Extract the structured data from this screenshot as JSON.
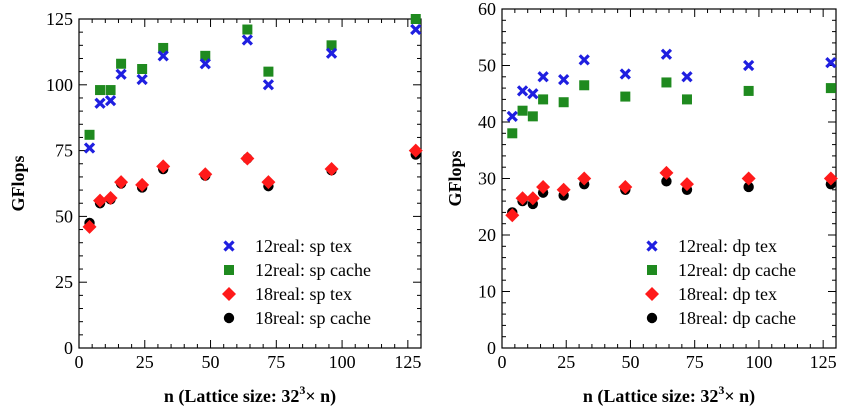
{
  "chart_data": [
    {
      "type": "scatter",
      "xlabel": "n (Lattice size: 32",
      "xlabel_sup": "3",
      "xlabel_tail": "× n)",
      "ylabel": "GFlops",
      "xlim": [
        0,
        130
      ],
      "ylim": [
        0,
        125
      ],
      "x_ticks": [
        0,
        25,
        50,
        75,
        100,
        125
      ],
      "y_ticks": [
        0,
        25,
        50,
        75,
        100,
        125
      ],
      "grid": false,
      "legend_position": "bottom-right",
      "series": [
        {
          "name": "12real: sp tex",
          "marker": "x",
          "color": "#1f1fe0",
          "x": [
            4,
            8,
            12,
            16,
            24,
            32,
            48,
            64,
            72,
            96,
            128
          ],
          "y": [
            76,
            93,
            94,
            104,
            102,
            111,
            108,
            117,
            100,
            112,
            121
          ]
        },
        {
          "name": "12real: sp cache",
          "marker": "square",
          "color": "#1f8a1f",
          "x": [
            4,
            8,
            12,
            16,
            24,
            32,
            48,
            64,
            72,
            96,
            128
          ],
          "y": [
            81,
            98,
            98,
            108,
            106,
            114,
            111,
            121,
            105,
            115,
            125
          ]
        },
        {
          "name": "18real: sp tex",
          "marker": "diamond",
          "color": "#ff1a1a",
          "x": [
            4,
            8,
            12,
            16,
            24,
            32,
            48,
            64,
            72,
            96,
            128
          ],
          "y": [
            46,
            56,
            57,
            63,
            62,
            69,
            66,
            72,
            63,
            68,
            75
          ]
        },
        {
          "name": "18real: sp cache",
          "marker": "circle",
          "color": "#000000",
          "x": [
            4,
            8,
            12,
            16,
            24,
            32,
            48,
            64,
            72,
            96,
            128
          ],
          "y": [
            47.5,
            55,
            56.5,
            62.5,
            61,
            68,
            65.5,
            72,
            61.5,
            67.5,
            73.5
          ]
        }
      ]
    },
    {
      "type": "scatter",
      "xlabel": "n (Lattice size: 32",
      "xlabel_sup": "3",
      "xlabel_tail": "× n)",
      "ylabel": "GFlops",
      "xlim": [
        0,
        130
      ],
      "ylim": [
        0,
        60
      ],
      "x_ticks": [
        0,
        25,
        50,
        75,
        100,
        125
      ],
      "y_ticks": [
        0,
        10,
        20,
        30,
        40,
        50,
        60
      ],
      "grid": false,
      "legend_position": "bottom-right",
      "series": [
        {
          "name": "12real: dp tex",
          "marker": "x",
          "color": "#1f1fe0",
          "x": [
            4,
            8,
            12,
            16,
            24,
            32,
            48,
            64,
            72,
            96,
            128
          ],
          "y": [
            41,
            45.5,
            45,
            48,
            47.5,
            51,
            48.5,
            52,
            48,
            50,
            50.5
          ]
        },
        {
          "name": "12real: dp cache",
          "marker": "square",
          "color": "#1f8a1f",
          "x": [
            4,
            8,
            12,
            16,
            24,
            32,
            48,
            64,
            72,
            96,
            128
          ],
          "y": [
            38,
            42,
            41,
            44,
            43.5,
            46.5,
            44.5,
            47,
            44,
            45.5,
            46
          ]
        },
        {
          "name": "18real: dp tex",
          "marker": "diamond",
          "color": "#ff1a1a",
          "x": [
            4,
            8,
            12,
            16,
            24,
            32,
            48,
            64,
            72,
            96,
            128
          ],
          "y": [
            23.5,
            26.5,
            26.5,
            28.5,
            28,
            30,
            28.5,
            31,
            29,
            30,
            30
          ]
        },
        {
          "name": "18real: dp cache",
          "marker": "circle",
          "color": "#000000",
          "x": [
            4,
            8,
            12,
            16,
            24,
            32,
            48,
            64,
            72,
            96,
            128
          ],
          "y": [
            24,
            26,
            25.5,
            27.5,
            27,
            29,
            28,
            29.5,
            28,
            28.5,
            29
          ]
        }
      ]
    }
  ]
}
